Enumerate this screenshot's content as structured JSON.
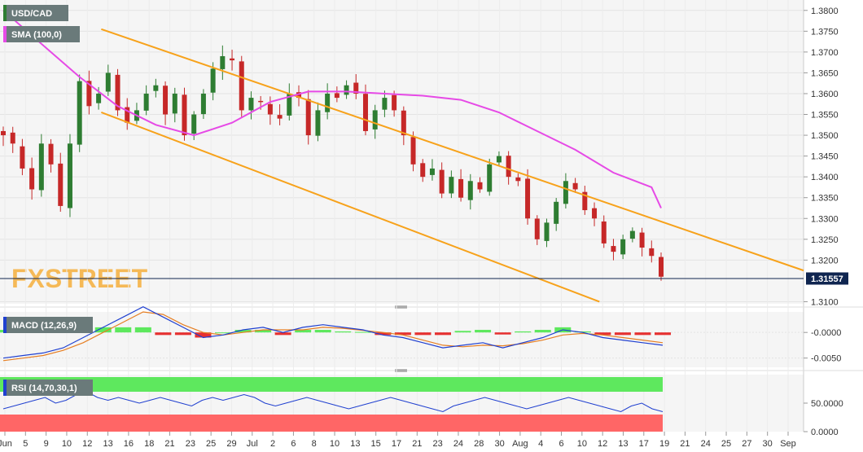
{
  "chart_data": [
    {
      "type": "candlestick",
      "panel": "price",
      "symbol_label": "USD/CAD",
      "indicator_label": "SMA (100,0)",
      "watermark": "FXSTREET",
      "last_price_label": "1.31557",
      "last_price": 1.31557,
      "ylim": [
        1.3095,
        1.3825
      ],
      "y_ticks": [
        "1.3800",
        "1.3750",
        "1.3700",
        "1.3650",
        "1.3600",
        "1.3550",
        "1.3500",
        "1.3450",
        "1.3400",
        "1.3350",
        "1.3300",
        "1.3250",
        "1.3200",
        "1.3100"
      ],
      "x_tick_labels": [
        "Jun",
        "5",
        "9",
        "10",
        "12",
        "13",
        "16",
        "18",
        "21",
        "23",
        "25",
        "29",
        "Jul",
        "2",
        "6",
        "8",
        "10",
        "13",
        "15",
        "17",
        "21",
        "23",
        "24",
        "28",
        "30",
        "Aug",
        "4",
        "6",
        "10",
        "12",
        "13",
        "17",
        "19",
        "21",
        "24",
        "25",
        "27",
        "30",
        "Sep"
      ],
      "close_path": [
        1.35,
        1.348,
        1.342,
        1.337,
        1.348,
        1.343,
        1.333,
        1.348,
        1.363,
        1.357,
        1.36,
        1.365,
        1.356,
        1.353,
        1.356,
        1.36,
        1.362,
        1.355,
        1.36,
        1.35,
        1.355,
        1.36,
        1.366,
        1.369,
        1.368,
        1.356,
        1.359,
        1.358,
        1.355,
        1.354,
        1.36,
        1.359,
        1.35,
        1.356,
        1.36,
        1.359,
        1.362,
        1.36,
        1.351,
        1.356,
        1.359,
        1.356,
        1.35,
        1.343,
        1.34,
        1.342,
        1.336,
        1.34,
        1.335,
        1.339,
        1.337,
        1.343,
        1.345,
        1.34,
        1.339,
        1.33,
        1.325,
        1.329,
        1.334,
        1.339,
        1.337,
        1.332,
        1.33,
        1.324,
        1.322,
        1.325,
        1.327,
        1.323,
        1.321,
        1.316
      ],
      "sma_label": "SMA (100,0)",
      "sma_points": [
        [
          0,
          1.38
        ],
        [
          4,
          1.372
        ],
        [
          8,
          1.364
        ],
        [
          12,
          1.357
        ],
        [
          16,
          1.3525
        ],
        [
          20,
          1.35
        ],
        [
          24,
          1.353
        ],
        [
          28,
          1.358
        ],
        [
          32,
          1.3605
        ],
        [
          36,
          1.3605
        ],
        [
          40,
          1.36
        ],
        [
          44,
          1.3595
        ],
        [
          48,
          1.3585
        ],
        [
          52,
          1.3555
        ],
        [
          56,
          1.351
        ],
        [
          60,
          1.3465
        ],
        [
          64,
          1.341
        ],
        [
          68,
          1.3375
        ],
        [
          69,
          1.3325
        ]
      ],
      "upper_channel": {
        "from": [
          1.3755,
          12
        ],
        "to": [
          1.3175,
          98
        ]
      },
      "lower_channel": {
        "from": [
          1.3555,
          12
        ],
        "to": [
          1.31,
          73
        ]
      }
    },
    {
      "type": "histogram-line",
      "panel": "macd",
      "label": "MACD (12,26,9)",
      "ylim": [
        -0.0068,
        0.004
      ],
      "y_ticks": [
        "-0.0000",
        "-0.0050"
      ],
      "macd_line": [
        -0.005,
        -0.0045,
        -0.004,
        -0.003,
        -0.001,
        0.001,
        0.003,
        0.005,
        0.003,
        0.001,
        -0.001,
        -0.0005,
        0.0005,
        0.001,
        0.0,
        0.001,
        0.0015,
        0.001,
        0.0005,
        -0.0005,
        -0.001,
        -0.002,
        -0.003,
        -0.0025,
        -0.002,
        -0.003,
        -0.002,
        -0.001,
        0.0005,
        0.0,
        -0.001,
        -0.0015,
        -0.002,
        -0.0025
      ],
      "signal_line": [
        -0.0055,
        -0.005,
        -0.0045,
        -0.0035,
        -0.002,
        0.0,
        0.002,
        0.004,
        0.0035,
        0.0015,
        0.0,
        -0.0005,
        0.0,
        0.0005,
        0.0005,
        0.0005,
        0.001,
        0.0008,
        0.0004,
        0.0,
        -0.0005,
        -0.0015,
        -0.0025,
        -0.0028,
        -0.0025,
        -0.0026,
        -0.0022,
        -0.0015,
        -0.0005,
        -0.0002,
        -0.0005,
        -0.001,
        -0.0015,
        -0.002
      ],
      "histogram": [
        0.0005,
        0.0005,
        0.0005,
        0.0005,
        0.001,
        0.001,
        0.001,
        0.001,
        -0.0005,
        -0.0005,
        -0.001,
        0.0,
        0.0005,
        0.0005,
        -0.0005,
        0.0005,
        0.0005,
        0.0002,
        0.0001,
        -0.0005,
        -0.0005,
        -0.0005,
        -0.0005,
        0.0003,
        0.0005,
        -0.0004,
        0.0002,
        0.0005,
        0.001,
        0.0002,
        -0.0005,
        -0.0005,
        -0.0005,
        -0.0005
      ]
    },
    {
      "type": "line",
      "panel": "rsi",
      "label": "RSI (14,70,30,1)",
      "ylim": [
        0,
        100
      ],
      "y_ticks": [
        "50.0000",
        "0.0000"
      ],
      "overbought": 70,
      "oversold": 30,
      "values": [
        40,
        45,
        50,
        55,
        60,
        50,
        55,
        65,
        70,
        60,
        55,
        60,
        55,
        50,
        55,
        60,
        55,
        50,
        45,
        55,
        60,
        55,
        60,
        65,
        60,
        50,
        45,
        50,
        55,
        60,
        55,
        50,
        45,
        40,
        45,
        50,
        55,
        60,
        55,
        50,
        45,
        40,
        35,
        45,
        50,
        55,
        60,
        55,
        50,
        45,
        40,
        45,
        50,
        55,
        60,
        55,
        50,
        45,
        40,
        35,
        45,
        50,
        40,
        35
      ]
    }
  ],
  "colors": {
    "bull": "#2e7d32",
    "bear": "#c62828",
    "sma": "#e64ae6",
    "channel": "#f7a21b",
    "last_price_box": "#0f2550",
    "macd_line": "#2040d0",
    "signal_line": "#e67e22",
    "hist_up": "#5de85d",
    "hist_down": "#e63030",
    "rsi_line": "#2040d0",
    "rsi_overbought_fill": "#5ee85e",
    "rsi_oversold_fill": "#ff6666",
    "label_box": "#6a7a7a",
    "watermark": "#f5a623",
    "panel_bg": "#f5f5f5"
  }
}
